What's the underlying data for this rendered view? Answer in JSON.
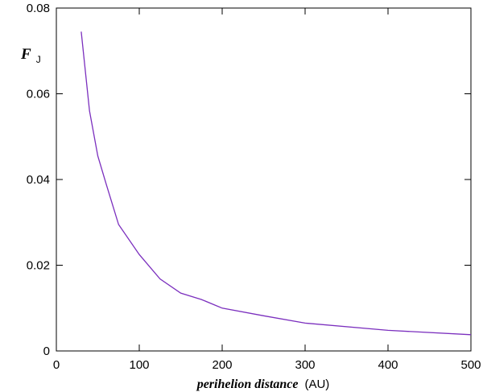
{
  "chart_data": {
    "type": "line",
    "xlabel_italic": "perihelion distance",
    "xlabel_unit": "(AU)",
    "ylabel_main": "F",
    "ylabel_sub": "J",
    "xlim": [
      0,
      500
    ],
    "ylim": [
      0,
      0.08
    ],
    "x_ticks": [
      0,
      100,
      200,
      300,
      400,
      500
    ],
    "x_tick_labels": [
      "0",
      "100",
      "200",
      "300",
      "400",
      "500"
    ],
    "y_ticks": [
      0,
      0.02,
      0.04,
      0.06,
      0.08
    ],
    "y_tick_labels": [
      "0",
      "0.02",
      "0.04",
      "0.06",
      "0.08"
    ],
    "series_color": "#7b2fbe",
    "series": [
      {
        "x": [
          30,
          40,
          50,
          60,
          75,
          100,
          125,
          150,
          175,
          200,
          250,
          300,
          400,
          500
        ],
        "y": [
          0.0745,
          0.056,
          0.0455,
          0.039,
          0.0295,
          0.0225,
          0.0168,
          0.0135,
          0.012,
          0.01,
          0.0082,
          0.0065,
          0.0048,
          0.0038
        ]
      }
    ]
  }
}
